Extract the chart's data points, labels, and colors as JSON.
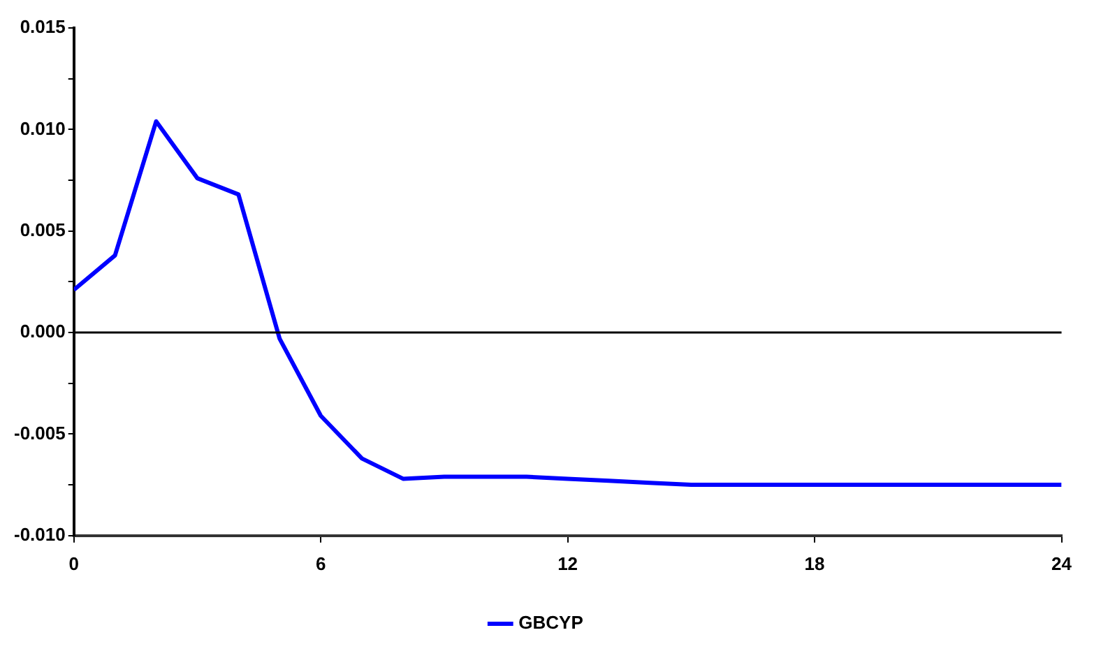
{
  "chart_data": {
    "type": "line",
    "x": [
      0,
      1,
      2,
      3,
      4,
      5,
      6,
      7,
      8,
      9,
      10,
      11,
      12,
      13,
      14,
      15,
      16,
      17,
      18,
      19,
      20,
      21,
      22,
      23,
      24
    ],
    "series": [
      {
        "name": "GBCYP",
        "color": "#0000ff",
        "values": [
          0.0021,
          0.0038,
          0.0104,
          0.0076,
          0.0068,
          -0.0003,
          -0.0041,
          -0.0062,
          -0.0072,
          -0.0071,
          -0.0071,
          -0.0071,
          -0.0072,
          -0.0073,
          -0.0074,
          -0.0075,
          -0.0075,
          -0.0075,
          -0.0075,
          -0.0075,
          -0.0075,
          -0.0075,
          -0.0075,
          -0.0075,
          -0.0075
        ]
      }
    ],
    "xlim": [
      0,
      24
    ],
    "xticks": [
      0,
      6,
      12,
      18,
      24
    ],
    "ylim": [
      -0.01,
      0.015
    ],
    "yticks": [
      {
        "value": -0.01,
        "label": "-0.010"
      },
      {
        "value": -0.0075,
        "label": null
      },
      {
        "value": -0.005,
        "label": "-0.005"
      },
      {
        "value": -0.0025,
        "label": null
      },
      {
        "value": 0,
        "label": "0.000"
      },
      {
        "value": 0.0025,
        "label": null
      },
      {
        "value": 0.005,
        "label": "0.005"
      },
      {
        "value": 0.0075,
        "label": null
      },
      {
        "value": 0.01,
        "label": "0.010"
      },
      {
        "value": 0.0125,
        "label": null
      },
      {
        "value": 0.015,
        "label": "0.015"
      }
    ],
    "ref_lines": [
      {
        "axis": "y",
        "value": 0,
        "color": "#000000"
      }
    ],
    "grid": false,
    "legend": "bottom",
    "marker": "none",
    "line_style": "solid"
  }
}
